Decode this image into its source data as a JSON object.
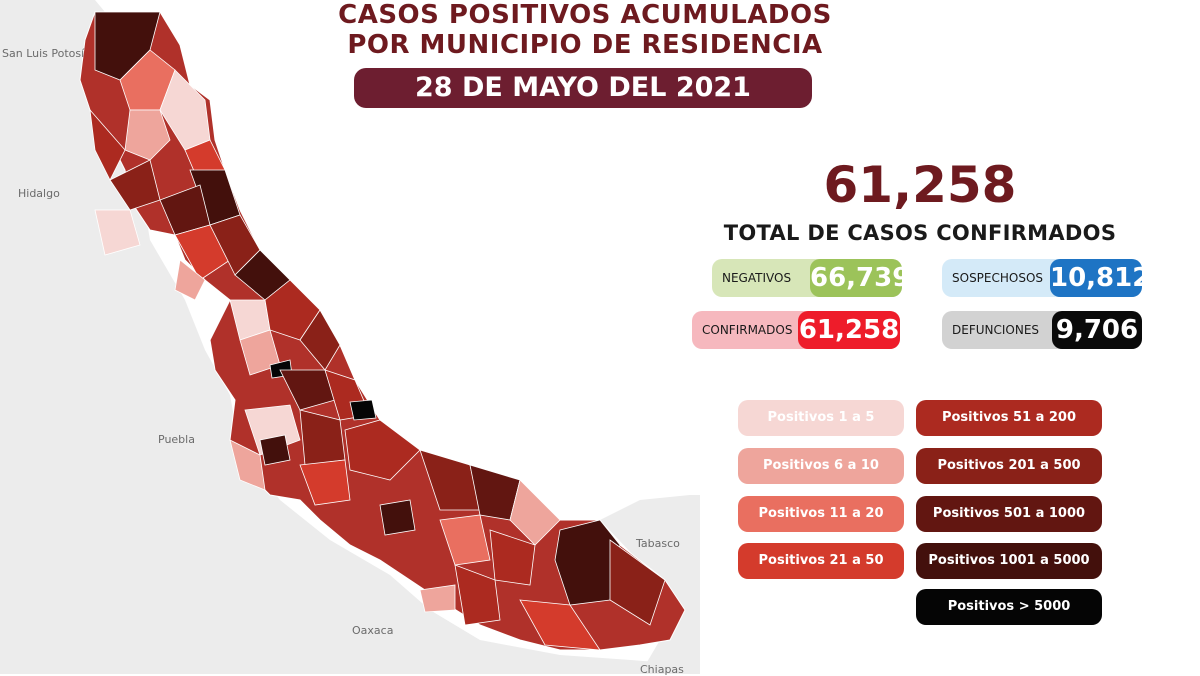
{
  "title": {
    "line1": "CASOS POSITIVOS ACUMULADOS",
    "line2": "POR MUNICIPIO DE RESIDENCIA",
    "date": "28 DE MAYO DEL 2021"
  },
  "summary": {
    "total": "61,258",
    "total_label": "TOTAL DE CASOS CONFIRMADOS"
  },
  "stats": {
    "negativos": {
      "label": "NEGATIVOS",
      "value": "66,739"
    },
    "sospechosos": {
      "label": "SOSPECHOSOS",
      "value": "10,812"
    },
    "confirmados": {
      "label": "CONFIRMADOS",
      "value": "61,258"
    },
    "defunciones": {
      "label": "DEFUNCIONES",
      "value": "9,706"
    }
  },
  "legend": [
    {
      "label": "Positivos 1 a 5",
      "color": "#f6d7d4",
      "text_color": "#ffffff"
    },
    {
      "label": "Positivos 6 a 10",
      "color": "#eea59c",
      "text_color": "#ffffff"
    },
    {
      "label": "Positivos 11 a 20",
      "color": "#e96f60",
      "text_color": "#ffffff"
    },
    {
      "label": "Positivos 21 a 50",
      "color": "#d43b2c",
      "text_color": "#ffffff"
    },
    {
      "label": "Positivos 51 a 200",
      "color": "#ac2a20",
      "text_color": "#ffffff"
    },
    {
      "label": "Positivos 201 a 500",
      "color": "#8a2118",
      "text_color": "#ffffff"
    },
    {
      "label": "Positivos 501 a 1000",
      "color": "#621611",
      "text_color": "#ffffff"
    },
    {
      "label": "Positivos 1001 a 5000",
      "color": "#43100c",
      "text_color": "#ffffff"
    },
    {
      "label": "Positivos > 5000",
      "color": "#050505",
      "text_color": "#ffffff"
    }
  ],
  "map": {
    "neighbors": [
      "San Luis Potosí",
      "Hidalgo",
      "Puebla",
      "Oaxaca",
      "Tabasco",
      "Chiapas"
    ],
    "colors": {
      "background_land": "#ececec",
      "sea": "#ffffff",
      "state_base": "#b0312a"
    }
  }
}
